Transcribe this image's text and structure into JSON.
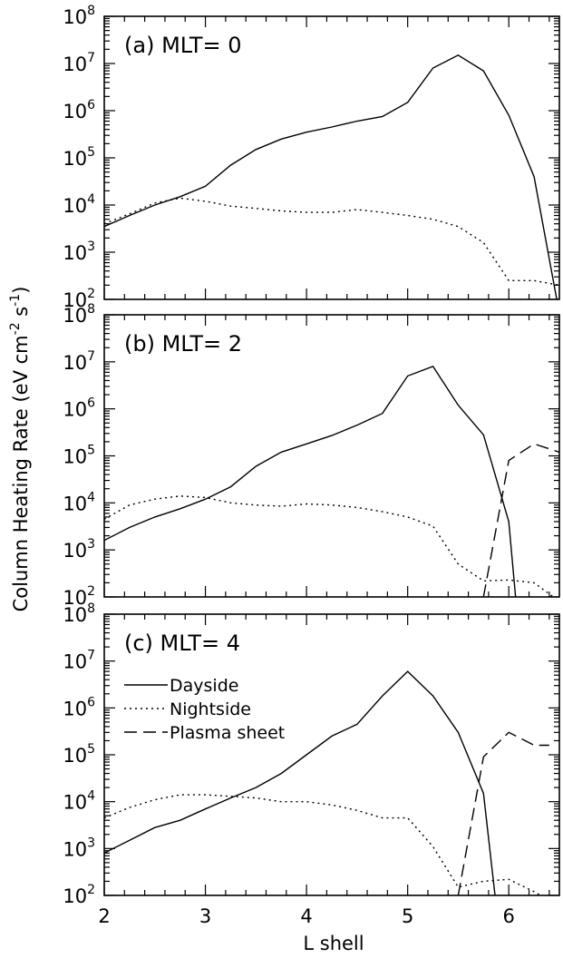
{
  "chart_data": [
    {
      "type": "line",
      "panel_label": "(a) MLT= 0",
      "y_scale": "log",
      "xlim": [
        2,
        6.5
      ],
      "ylim": [
        100,
        100000000
      ],
      "y_ticks": [
        100,
        1000,
        10000,
        100000,
        1000000,
        10000000,
        100000000
      ],
      "series": [
        {
          "key": "dayside",
          "x": [
            2.0,
            2.25,
            2.5,
            2.75,
            3.0,
            3.25,
            3.5,
            3.75,
            4.0,
            4.25,
            4.5,
            4.75,
            5.0,
            5.25,
            5.5,
            5.75,
            6.0,
            6.25,
            6.5
          ],
          "y": [
            3500,
            6000,
            10000,
            15000,
            25000,
            70000,
            150000,
            250000,
            350000,
            450000,
            600000,
            750000,
            1500000,
            8000000,
            15000000,
            7000000,
            800000,
            40000,
            50
          ]
        },
        {
          "key": "nightside",
          "x": [
            2.0,
            2.25,
            2.5,
            2.75,
            3.0,
            3.25,
            3.5,
            3.75,
            4.0,
            4.25,
            4.5,
            4.75,
            5.0,
            5.25,
            5.5,
            5.75,
            6.0,
            6.25,
            6.5
          ],
          "y": [
            4000,
            6500,
            11000,
            14000,
            12000,
            9500,
            8500,
            7500,
            7000,
            7000,
            8000,
            7000,
            6000,
            5000,
            3500,
            1600,
            250,
            250,
            200
          ]
        }
      ]
    },
    {
      "type": "line",
      "panel_label": "(b) MLT= 2",
      "y_scale": "log",
      "xlim": [
        2,
        6.5
      ],
      "ylim": [
        100,
        100000000
      ],
      "y_ticks": [
        100,
        1000,
        10000,
        100000,
        1000000,
        10000000,
        100000000
      ],
      "series": [
        {
          "key": "dayside",
          "x": [
            2.0,
            2.25,
            2.5,
            2.75,
            3.0,
            3.25,
            3.5,
            3.75,
            4.0,
            4.25,
            4.5,
            4.75,
            5.0,
            5.25,
            5.5,
            5.75,
            6.0,
            6.08
          ],
          "y": [
            1600,
            3000,
            5000,
            7500,
            12000,
            22000,
            60000,
            120000,
            180000,
            270000,
            450000,
            800000,
            5000000,
            8000000,
            1200000,
            280000,
            4000,
            50
          ]
        },
        {
          "key": "nightside",
          "x": [
            2.0,
            2.25,
            2.5,
            2.75,
            3.0,
            3.25,
            3.5,
            3.75,
            4.0,
            4.25,
            4.5,
            4.75,
            5.0,
            5.25,
            5.5,
            5.75,
            6.0,
            6.25,
            6.5
          ],
          "y": [
            4500,
            9000,
            12000,
            14000,
            13000,
            10000,
            9000,
            8500,
            9500,
            9000,
            8000,
            6500,
            5000,
            3200,
            500,
            220,
            230,
            200,
            80
          ]
        },
        {
          "key": "plasma_sheet",
          "x": [
            5.75,
            6.0,
            6.25,
            6.5
          ],
          "y": [
            100,
            80000,
            180000,
            120000
          ]
        }
      ]
    },
    {
      "type": "line",
      "panel_label": "(c) MLT= 4",
      "y_scale": "log",
      "xlim": [
        2,
        6.5
      ],
      "ylim": [
        100,
        100000000
      ],
      "y_ticks": [
        100,
        1000,
        10000,
        100000,
        1000000,
        10000000,
        100000000
      ],
      "x_ticks": [
        2,
        3,
        4,
        5,
        6
      ],
      "xlabel": "L shell",
      "legend": {
        "position": "top-left",
        "entries": [
          {
            "key": "dayside",
            "label": "Dayside"
          },
          {
            "key": "nightside",
            "label": "Nightside"
          },
          {
            "key": "plasma_sheet",
            "label": "Plasma sheet"
          }
        ]
      },
      "series": [
        {
          "key": "dayside",
          "x": [
            2.0,
            2.25,
            2.5,
            2.75,
            3.0,
            3.25,
            3.5,
            3.75,
            4.0,
            4.25,
            4.5,
            4.75,
            5.0,
            5.25,
            5.5,
            5.75,
            5.88
          ],
          "y": [
            800,
            1500,
            2800,
            4000,
            7000,
            12000,
            20000,
            40000,
            100000,
            250000,
            450000,
            1800000,
            6000000,
            1800000,
            300000,
            15000,
            50
          ]
        },
        {
          "key": "nightside",
          "x": [
            2.0,
            2.25,
            2.5,
            2.75,
            3.0,
            3.25,
            3.5,
            3.75,
            4.0,
            4.25,
            4.5,
            4.75,
            5.0,
            5.25,
            5.5,
            5.75,
            6.0,
            6.25,
            6.5
          ],
          "y": [
            4500,
            7500,
            11000,
            14000,
            14000,
            13000,
            12000,
            10000,
            10000,
            8500,
            6500,
            4500,
            4500,
            1100,
            150,
            200,
            220,
            120,
            60
          ]
        },
        {
          "key": "plasma_sheet",
          "x": [
            5.5,
            5.75,
            6.0,
            6.25,
            6.4
          ],
          "y": [
            100,
            90000,
            300000,
            160000,
            160000
          ]
        }
      ]
    }
  ],
  "ylabel": "Column Heating Rate (eV cm",
  "ylabel_exp1": "-2",
  "ylabel_mid": " s",
  "ylabel_exp2": "-1",
  "ylabel_end": ")",
  "styles": {
    "dayside": "solid",
    "nightside": "dotted",
    "plasma_sheet": "dashed"
  }
}
